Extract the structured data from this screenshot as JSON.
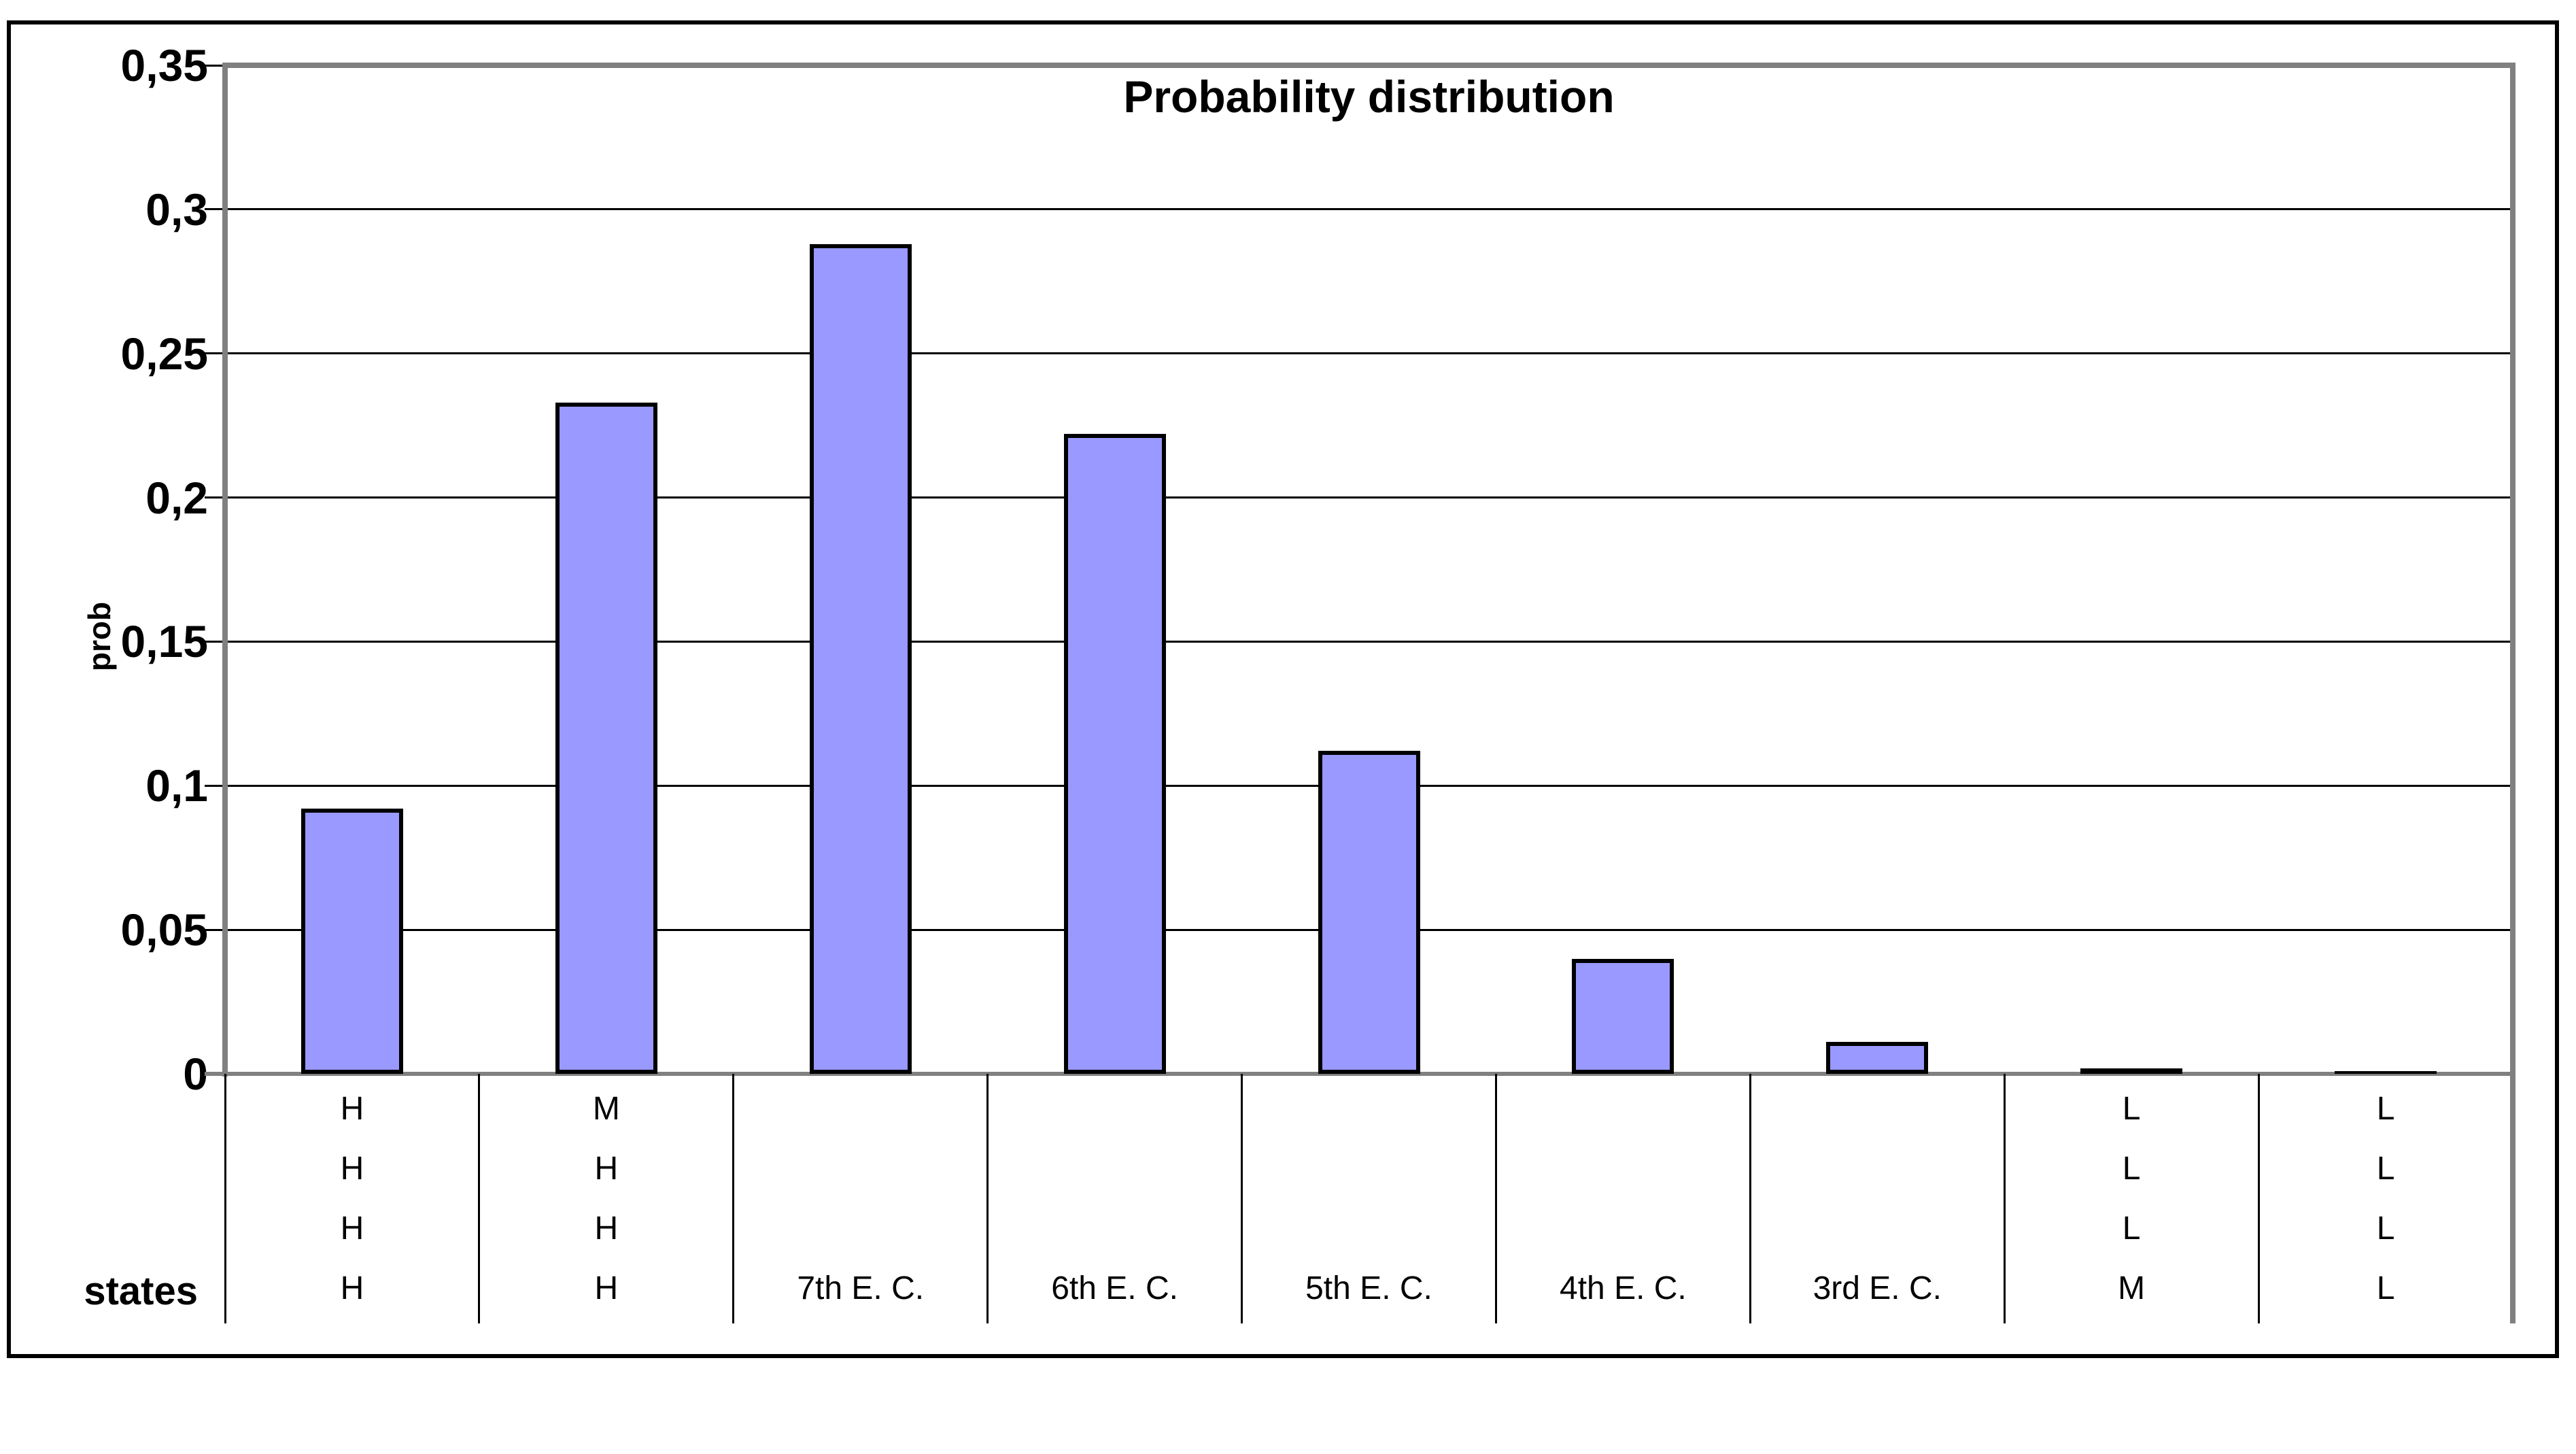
{
  "page": {
    "background_color": "#ffffff"
  },
  "chart_data": {
    "type": "bar",
    "title": "Probability distribution",
    "ylabel": "prob",
    "xlabel": "states",
    "categories": [
      "H H H H",
      "M H H H",
      "7th E. C.",
      "6th E. C.",
      "5th E. C.",
      "4th E. C.",
      "3rd E. C.",
      "L L L M",
      "L L L L"
    ],
    "category_label_lines": [
      [
        "H",
        "H",
        "H",
        "H"
      ],
      [
        "M",
        "H",
        "H",
        "H"
      ],
      [
        "7th E. C."
      ],
      [
        "6th E. C."
      ],
      [
        "5th E. C."
      ],
      [
        "4th E. C."
      ],
      [
        "3rd E. C."
      ],
      [
        "L",
        "L",
        "L",
        "M"
      ],
      [
        "L",
        "L",
        "L",
        "L"
      ]
    ],
    "values": [
      0.092,
      0.233,
      0.288,
      0.222,
      0.112,
      0.04,
      0.011,
      0.002,
      0.001
    ],
    "ylim": [
      0,
      0.35
    ],
    "ytick_values": [
      0,
      0.05,
      0.1,
      0.15,
      0.2,
      0.25,
      0.3,
      0.35
    ],
    "ytick_labels": [
      "0",
      "0,05",
      "0,1",
      "0,15",
      "0,2",
      "0,25",
      "0,3",
      "0,35"
    ],
    "decimal_separator": ",",
    "grid": true,
    "legend_position": "none",
    "colors": {
      "bar_fill": "#9999ff",
      "bar_border": "#000000",
      "gridline": "#000000",
      "axis_line": "#808080",
      "text": "#000000",
      "frame_border": "#000000"
    }
  }
}
